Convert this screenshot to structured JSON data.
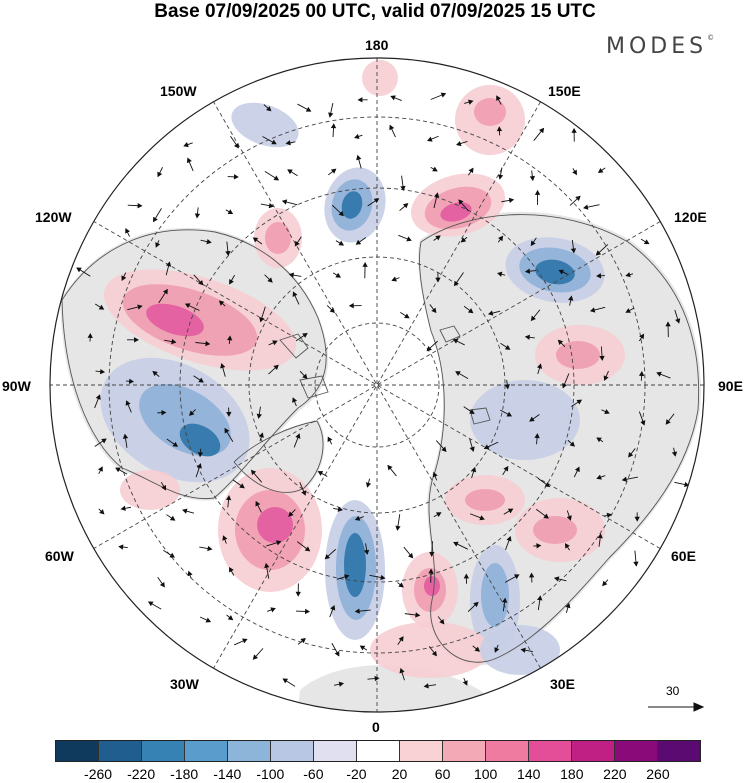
{
  "title": "Base 07/09/2025 00 UTC, valid 07/09/2025 15 UTC",
  "brand": "MODES",
  "brand_mark": "©",
  "longitude_labels": {
    "top": "180",
    "bottom": "0",
    "left": "90W",
    "right": "90E",
    "upper_left_1": "150W",
    "upper_left_2": "120W",
    "upper_right_1": "150E",
    "upper_right_2": "120E",
    "lower_left_1": "60W",
    "lower_left_2": "30W",
    "lower_right_1": "60E",
    "lower_right_2": "30E"
  },
  "reference_vector": "30",
  "colorbar": {
    "ticks": [
      "-260",
      "-220",
      "-180",
      "-140",
      "-100",
      "-60",
      "-20",
      "20",
      "60",
      "100",
      "140",
      "180",
      "220",
      "260"
    ],
    "colors": [
      "#0f3a5e",
      "#1f5e8e",
      "#3782b4",
      "#5a9ccb",
      "#8db5da",
      "#b8c8e4",
      "#e0e0f0",
      "#ffffff",
      "#f9d2d6",
      "#f4a9b6",
      "#ef7ba0",
      "#e44e99",
      "#c01f83",
      "#8a0a79",
      "#5b0a72"
    ]
  },
  "anomaly_colors": {
    "negative_strong": "#2e74aa",
    "negative": "#8fb0d8",
    "negative_weak": "#c6cee6",
    "positive_weak": "#f6cdd2",
    "positive": "#ef9cb1",
    "positive_strong": "#e25ba0",
    "land": "#e6e6e6"
  }
}
